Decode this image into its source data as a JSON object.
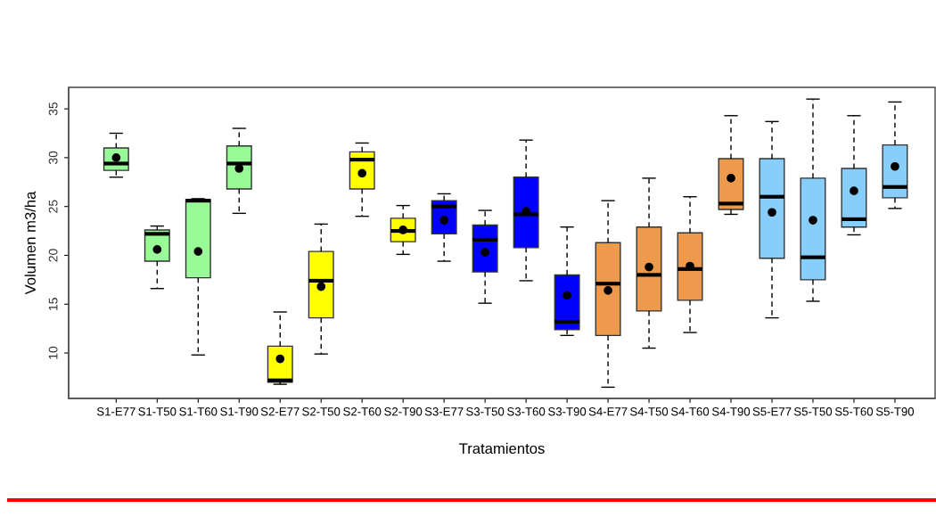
{
  "chart_data": {
    "type": "box",
    "xlabel": "Tratamientos",
    "ylabel": "Volumen m3/ha",
    "categories": [
      "S1-E77",
      "S1-T50",
      "S1-T60",
      "S1-T90",
      "S2-E77",
      "S2-T50",
      "S2-T60",
      "S2-T90",
      "S3-E77",
      "S3-T50",
      "S3-T60",
      "S3-T90",
      "S4-E77",
      "S4-T50",
      "S4-T60",
      "S4-T90",
      "S5-E77",
      "S5-T50",
      "S5-T60",
      "S5-T90"
    ],
    "colors": [
      "#98fb98",
      "#98fb98",
      "#98fb98",
      "#98fb98",
      "#ffff00",
      "#ffff00",
      "#ffff00",
      "#ffff00",
      "#0000ff",
      "#0000ff",
      "#0000ff",
      "#0000ff",
      "#ee9a4d",
      "#ee9a4d",
      "#ee9a4d",
      "#ee9a4d",
      "#87cefa",
      "#87cefa",
      "#87cefa",
      "#87cefa"
    ],
    "boxes": [
      {
        "low": 28,
        "q1": 28.7,
        "median": 29.4,
        "q3": 31,
        "high": 32.5,
        "mean": 30
      },
      {
        "low": 16.6,
        "q1": 19.4,
        "median": 22.2,
        "q3": 22.6,
        "high": 23,
        "mean": 20.6
      },
      {
        "low": 9.8,
        "q1": 17.7,
        "median": 25.6,
        "q3": 25.7,
        "high": 25.8,
        "mean": 20.4
      },
      {
        "low": 24.3,
        "q1": 26.8,
        "median": 29.4,
        "q3": 31.2,
        "high": 33,
        "mean": 28.9
      },
      {
        "low": 6.8,
        "q1": 7.0,
        "median": 7.2,
        "q3": 10.7,
        "high": 14.2,
        "mean": 9.4
      },
      {
        "low": 9.9,
        "q1": 13.6,
        "median": 17.4,
        "q3": 20.4,
        "high": 23.2,
        "mean": 16.8
      },
      {
        "low": 24,
        "q1": 26.8,
        "median": 29.8,
        "q3": 30.6,
        "high": 31.5,
        "mean": 28.4
      },
      {
        "low": 20.1,
        "q1": 21.4,
        "median": 22.5,
        "q3": 23.8,
        "high": 25.1,
        "mean": 22.6
      },
      {
        "low": 19.4,
        "q1": 22.2,
        "median": 25,
        "q3": 25.6,
        "high": 26.3,
        "mean": 23.6
      },
      {
        "low": 15.1,
        "q1": 18.3,
        "median": 21.6,
        "q3": 23.1,
        "high": 24.6,
        "mean": 20.3
      },
      {
        "low": 17.4,
        "q1": 20.8,
        "median": 24.2,
        "q3": 28,
        "high": 31.8,
        "mean": 24.5
      },
      {
        "low": 11.8,
        "q1": 12.4,
        "median": 13.2,
        "q3": 18,
        "high": 22.9,
        "mean": 15.9
      },
      {
        "low": 6.5,
        "q1": 11.8,
        "median": 17.1,
        "q3": 21.3,
        "high": 25.6,
        "mean": 16.4
      },
      {
        "low": 10.5,
        "q1": 14.3,
        "median": 18,
        "q3": 22.9,
        "high": 27.9,
        "mean": 18.8
      },
      {
        "low": 12.1,
        "q1": 15.4,
        "median": 18.6,
        "q3": 22.3,
        "high": 26,
        "mean": 18.9
      },
      {
        "low": 24.2,
        "q1": 24.7,
        "median": 25.3,
        "q3": 29.9,
        "high": 34.3,
        "mean": 27.9
      },
      {
        "low": 13.6,
        "q1": 19.7,
        "median": 26,
        "q3": 29.9,
        "high": 33.7,
        "mean": 24.4
      },
      {
        "low": 15.3,
        "q1": 17.5,
        "median": 19.8,
        "q3": 27.9,
        "high": 36,
        "mean": 23.6
      },
      {
        "low": 22.1,
        "q1": 22.9,
        "median": 23.7,
        "q3": 28.9,
        "high": 34.3,
        "mean": 26.6
      },
      {
        "low": 24.8,
        "q1": 25.9,
        "median": 27,
        "q3": 31.3,
        "high": 35.7,
        "mean": 29.1
      }
    ],
    "ylim": [
      5.35,
      37.2
    ],
    "yticks": [
      10,
      15,
      20,
      25,
      30,
      35
    ],
    "grid": false,
    "legend": false
  }
}
